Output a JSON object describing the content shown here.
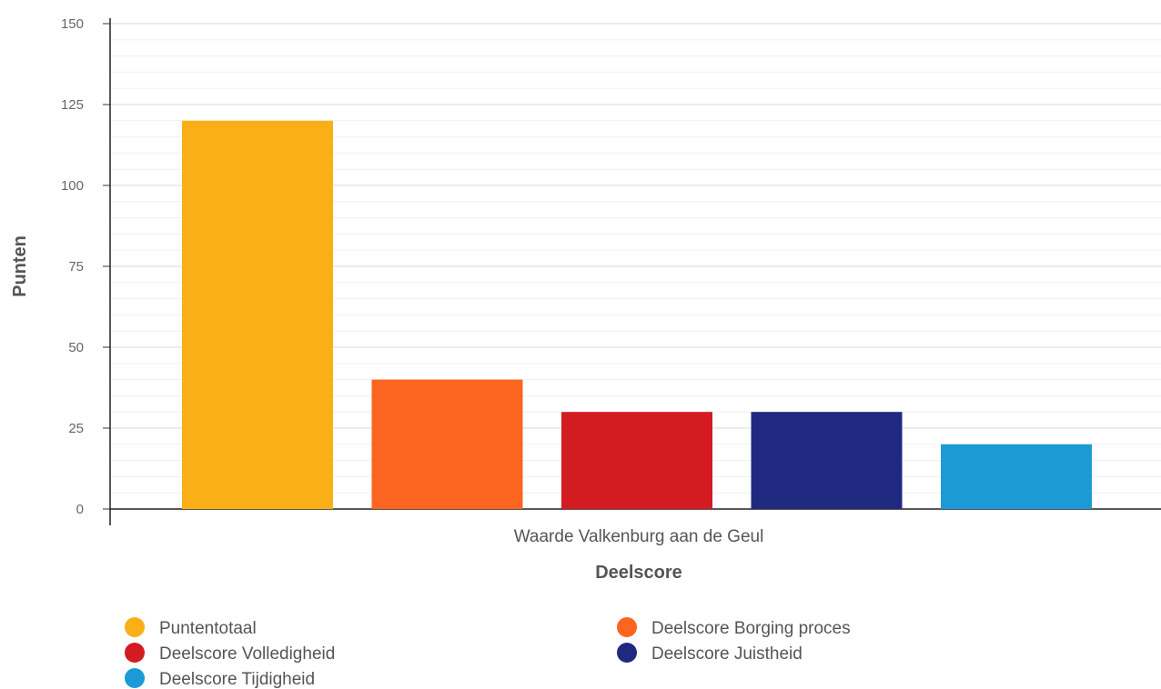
{
  "chart_data": {
    "type": "bar",
    "title": "",
    "xlabel": "Deelscore",
    "ylabel": "Punten",
    "category": "Waarde Valkenburg aan de Geul",
    "ylim": [
      0,
      150
    ],
    "yticks": [
      0,
      25,
      50,
      75,
      100,
      125,
      150
    ],
    "minor_grid_step": 5,
    "grid": true,
    "legend_position": "bottom",
    "series": [
      {
        "name": "Puntentotaal",
        "value": 120,
        "color": "#FBAF17"
      },
      {
        "name": "Deelscore Borging proces",
        "value": 40,
        "color": "#FC6520"
      },
      {
        "name": "Deelscore Volledigheid",
        "value": 30,
        "color": "#D21C22"
      },
      {
        "name": "Deelscore Juistheid",
        "value": 30,
        "color": "#1F297F"
      },
      {
        "name": "Deelscore Tijdigheid",
        "value": 20,
        "color": "#1B9AD6"
      }
    ]
  }
}
